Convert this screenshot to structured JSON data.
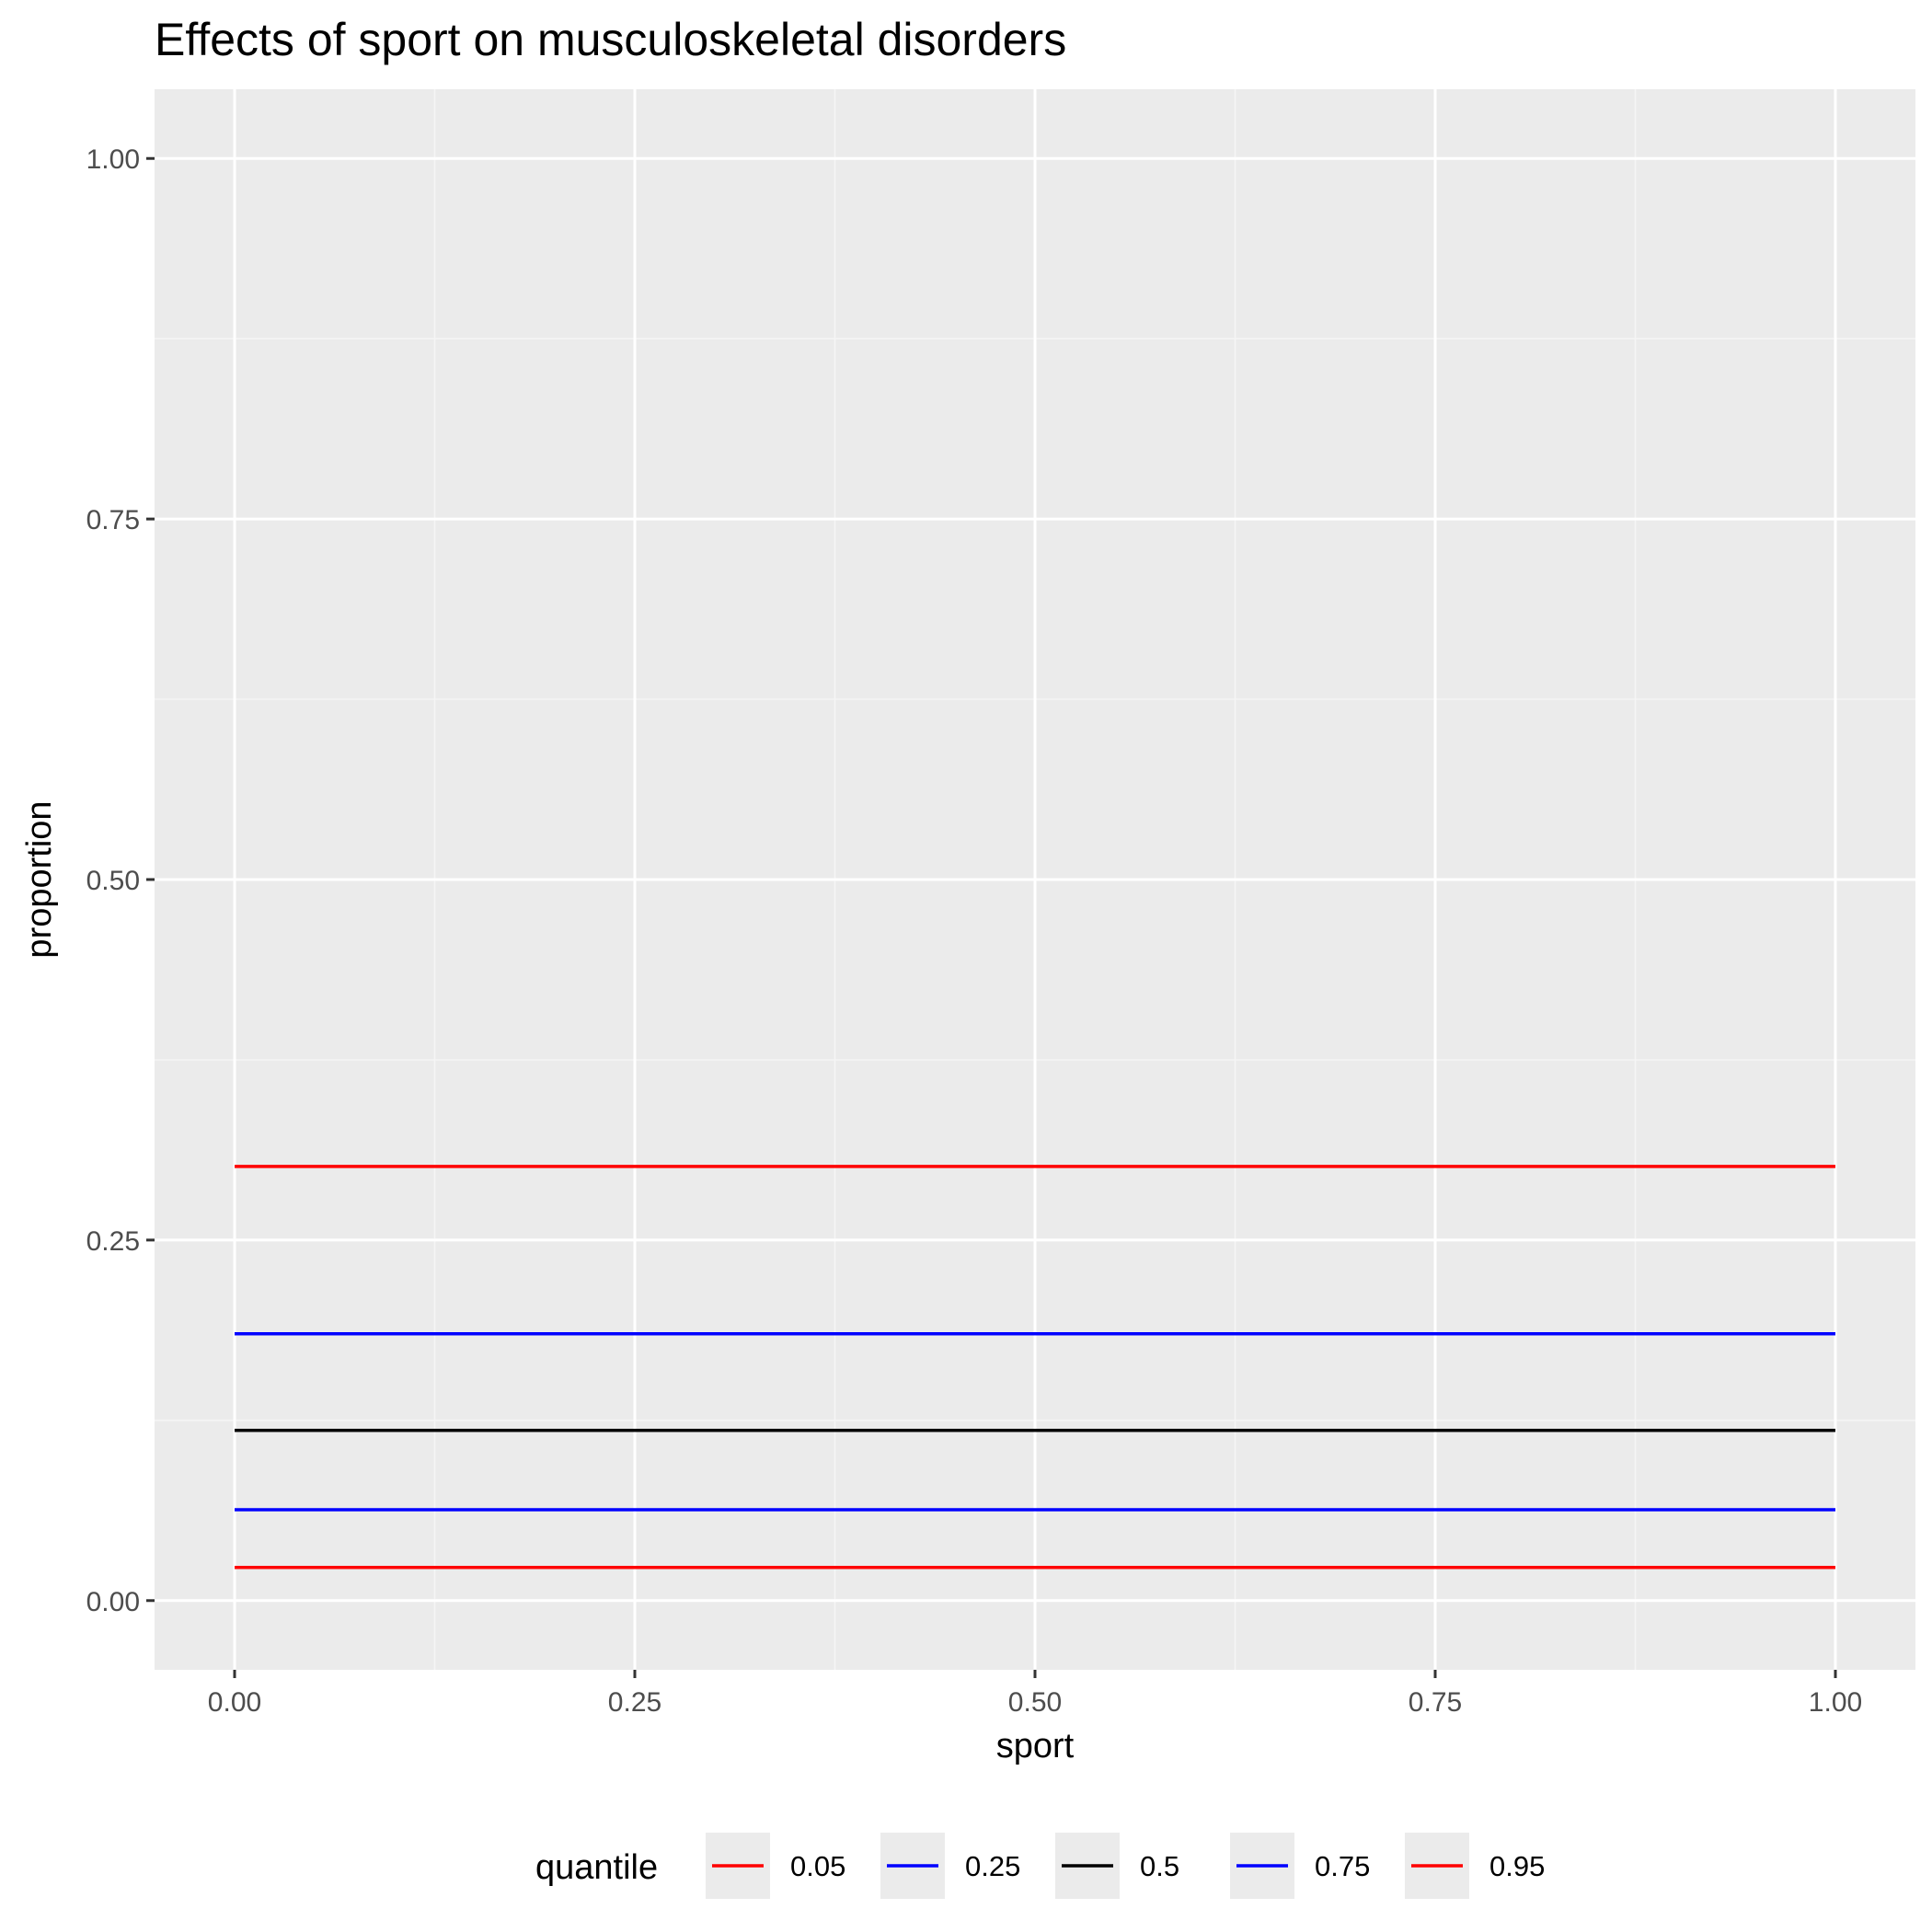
{
  "chart_data": {
    "type": "line",
    "title": "Effects of sport on musculoskeletal disorders",
    "xlabel": "sport",
    "ylabel": "proportion",
    "xlim": [
      -0.05,
      1.05
    ],
    "ylim": [
      -0.048,
      1.048
    ],
    "x_ticks": [
      0.0,
      0.25,
      0.5,
      0.75,
      1.0
    ],
    "x_tick_labels": [
      "0.00",
      "0.25",
      "0.50",
      "0.75",
      "1.00"
    ],
    "y_ticks": [
      0.0,
      0.25,
      0.5,
      0.75,
      1.0
    ],
    "y_tick_labels": [
      "0.00",
      "0.25",
      "0.50",
      "0.75",
      "1.00"
    ],
    "grid": true,
    "legend": {
      "title": "quantile",
      "position": "bottom"
    },
    "x": [
      0,
      1
    ],
    "series": [
      {
        "name": "0.05",
        "color": "#ff0000",
        "values": [
          0.023,
          0.023
        ]
      },
      {
        "name": "0.25",
        "color": "#0000ff",
        "values": [
          0.063,
          0.063
        ]
      },
      {
        "name": "0.5",
        "color": "#000000",
        "values": [
          0.118,
          0.118
        ]
      },
      {
        "name": "0.75",
        "color": "#0000ff",
        "values": [
          0.185,
          0.185
        ]
      },
      {
        "name": "0.95",
        "color": "#ff0000",
        "values": [
          0.301,
          0.301
        ]
      }
    ],
    "colors": {
      "panel_background": "#ebebeb",
      "grid_major": "#ffffff",
      "grid_minor": "#f5f5f5"
    }
  }
}
